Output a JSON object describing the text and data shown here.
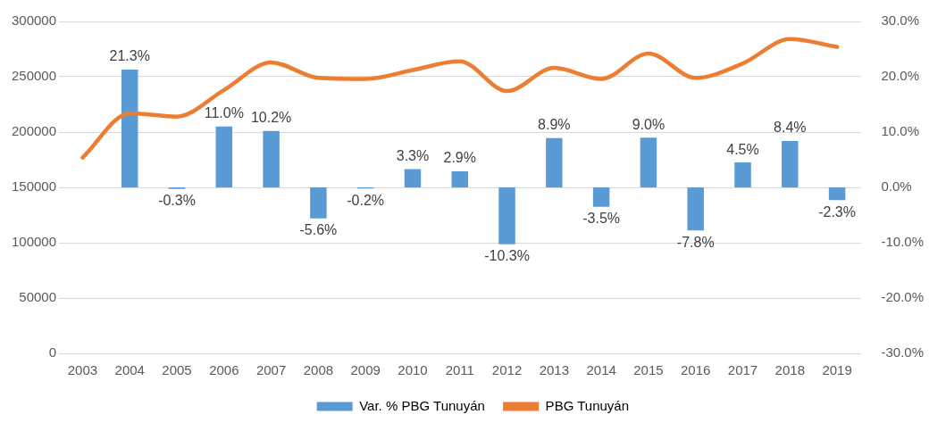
{
  "chart_data": {
    "type": "bar",
    "categories": [
      "2003",
      "2004",
      "2005",
      "2006",
      "2007",
      "2008",
      "2009",
      "2010",
      "2011",
      "2012",
      "2013",
      "2014",
      "2015",
      "2016",
      "2017",
      "2018",
      "2019"
    ],
    "series": [
      {
        "name": "Var. % PBG Tunuyán",
        "axis": "y2",
        "color": "#5b9bd5",
        "values": [
          null,
          21.3,
          -0.3,
          11.0,
          10.2,
          -5.6,
          -0.2,
          3.3,
          2.9,
          -10.3,
          8.9,
          -3.5,
          9.0,
          -7.8,
          4.5,
          8.4,
          -2.3
        ],
        "value_labels": [
          null,
          "21.3%",
          "-0.3%",
          "11.0%",
          "10.2%",
          "-5.6%",
          "-0.2%",
          "3.3%",
          "2.9%",
          "-10.3%",
          "8.9%",
          "-3.5%",
          "9.0%",
          "-7.8%",
          "4.5%",
          "8.4%",
          "-2.3%"
        ]
      },
      {
        "name": "PBG Tunuyán",
        "type": "line",
        "color": "#ed7d31",
        "values": [
          177000,
          217000,
          214000,
          238000,
          263000,
          249000,
          248000,
          256000,
          264000,
          237000,
          258000,
          248000,
          271000,
          249000,
          262000,
          284000,
          277000
        ]
      }
    ],
    "ylim": [
      0,
      300000
    ],
    "yticks": [
      0,
      50000,
      100000,
      150000,
      200000,
      250000,
      300000
    ],
    "y2lim": [
      -30,
      30
    ],
    "y2ticks": [
      {
        "value": -30,
        "label": "-30.0%"
      },
      {
        "value": -20,
        "label": "-20.0%"
      },
      {
        "value": -10,
        "label": "-10.0%"
      },
      {
        "value": 0,
        "label": "0.0%"
      },
      {
        "value": 10,
        "label": "10.0%"
      },
      {
        "value": 20,
        "label": "20.0%"
      },
      {
        "value": 30,
        "label": "30.0%"
      }
    ],
    "grid": "y",
    "legend": "bottom",
    "marker": "none",
    "line_style": "solid"
  }
}
